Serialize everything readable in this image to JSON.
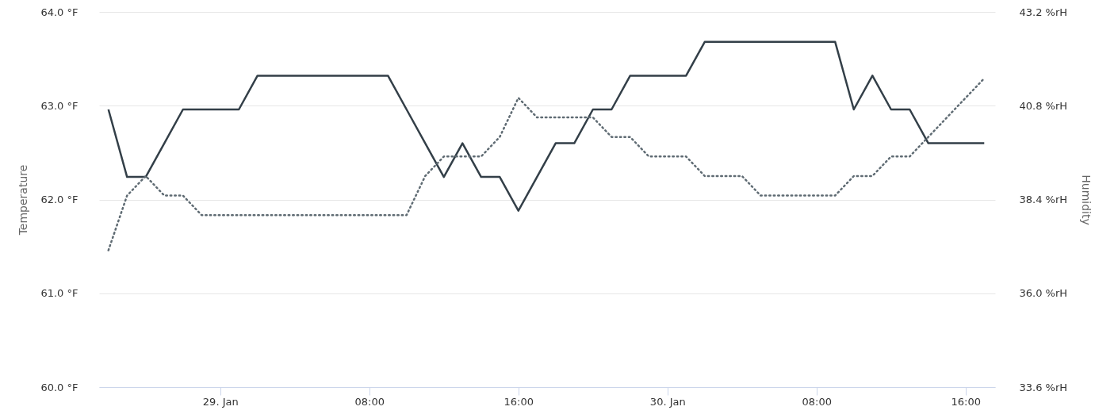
{
  "chart_data": {
    "type": "line",
    "xlabel": null,
    "ylabel": "Temperature",
    "y2label": "Humidity",
    "x": [
      "--01-28T18:00",
      "--01-28T19:00",
      "--01-28T20:00",
      "--01-28T21:00",
      "--01-28T22:00",
      "--01-28T23:00",
      "--01-29T00:00",
      "--01-29T01:00",
      "--01-29T02:00",
      "--01-29T03:00",
      "--01-29T04:00",
      "--01-29T05:00",
      "--01-29T06:00",
      "--01-29T07:00",
      "--01-29T08:00",
      "--01-29T09:00",
      "--01-29T10:00",
      "--01-29T11:00",
      "--01-29T12:00",
      "--01-29T13:00",
      "--01-29T14:00",
      "--01-29T15:00",
      "--01-29T16:00",
      "--01-29T17:00",
      "--01-29T18:00",
      "--01-29T19:00",
      "--01-29T20:00",
      "--01-29T21:00",
      "--01-29T22:00",
      "--01-29T23:00",
      "--01-30T00:00",
      "--01-30T01:00",
      "--01-30T02:00",
      "--01-30T03:00",
      "--01-30T04:00",
      "--01-30T05:00",
      "--01-30T06:00",
      "--01-30T07:00",
      "--01-30T08:00",
      "--01-30T09:00",
      "--01-30T10:00",
      "--01-30T11:00",
      "--01-30T12:00",
      "--01-30T13:00",
      "--01-30T14:00",
      "--01-30T15:00",
      "--01-30T16:00",
      "--01-30T17:00"
    ],
    "xlim": [
      "--01-28T17:30",
      "--01-30T17:35"
    ],
    "xticks": [
      {
        "value": "--01-29T00:00",
        "label": "29. Jan"
      },
      {
        "value": "--01-29T08:00",
        "label": "08:00"
      },
      {
        "value": "--01-29T16:00",
        "label": "16:00"
      },
      {
        "value": "--01-30T00:00",
        "label": "30. Jan"
      },
      {
        "value": "--01-30T08:00",
        "label": "08:00"
      },
      {
        "value": "--01-30T16:00",
        "label": "16:00"
      }
    ],
    "ylim": [
      60,
      64
    ],
    "yticks": [
      {
        "value": 60,
        "label": "60.0 °F"
      },
      {
        "value": 61,
        "label": "61.0 °F"
      },
      {
        "value": 62,
        "label": "62.0 °F"
      },
      {
        "value": 63,
        "label": "63.0 °F"
      },
      {
        "value": 64,
        "label": "64.0 °F"
      }
    ],
    "y2lim": [
      33.6,
      43.2
    ],
    "y2ticks": [
      {
        "value": 33.6,
        "label": "33.6 %rH"
      },
      {
        "value": 36,
        "label": "36.0 %rH"
      },
      {
        "value": 38.4,
        "label": "38.4 %rH"
      },
      {
        "value": 40.8,
        "label": "40.8 %rH"
      },
      {
        "value": 43.2,
        "label": "43.2 %rH"
      }
    ],
    "grid": "y",
    "marker": "none",
    "series": [
      {
        "color": "#333f48",
        "line_style": "solid",
        "values": [
          62.96,
          62.24,
          62.24,
          62.6,
          62.96,
          62.96,
          62.96,
          62.96,
          63.32,
          63.32,
          63.32,
          63.32,
          63.32,
          63.32,
          63.32,
          63.32,
          62.96,
          62.6,
          62.24,
          62.6,
          62.24,
          62.24,
          61.88,
          62.24,
          62.6,
          62.6,
          62.96,
          62.96,
          63.32,
          63.32,
          63.32,
          63.32,
          63.68,
          63.68,
          63.68,
          63.68,
          63.68,
          63.68,
          63.68,
          63.68,
          62.96,
          63.32,
          62.96,
          62.96,
          62.6,
          62.6,
          62.6,
          62.6
        ]
      },
      {
        "color": "#5f6b73",
        "line_style": "dotted",
        "axis": "y2",
        "values": [
          37.1,
          38.5,
          39.0,
          38.5,
          38.5,
          38.0,
          38.0,
          38.0,
          38.0,
          38.0,
          38.0,
          38.0,
          38.0,
          38.0,
          38.0,
          38.0,
          38.0,
          39.0,
          39.5,
          39.5,
          39.5,
          40.0,
          41.0,
          40.5,
          40.5,
          40.5,
          40.5,
          40.0,
          40.0,
          39.5,
          39.5,
          39.5,
          39.0,
          39.0,
          39.0,
          38.5,
          38.5,
          38.5,
          38.5,
          38.5,
          39.0,
          39.0,
          39.5,
          39.5,
          40.0,
          40.5,
          41.0,
          41.5
        ]
      }
    ]
  }
}
